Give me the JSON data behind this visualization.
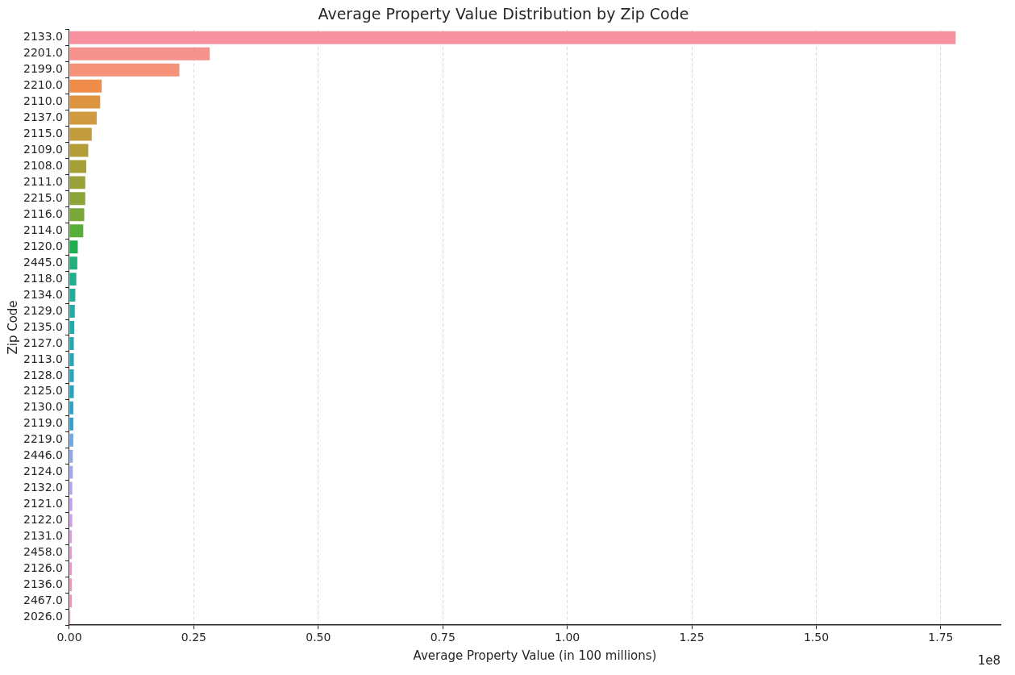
{
  "chart_data": {
    "type": "bar",
    "orientation": "horizontal",
    "title": "Average Property Value Distribution by Zip Code",
    "xlabel": "Average Property Value (in 100 millions)",
    "ylabel": "Zip Code",
    "categories": [
      "2133.0",
      "2201.0",
      "2199.0",
      "2210.0",
      "2110.0",
      "2137.0",
      "2115.0",
      "2109.0",
      "2108.0",
      "2111.0",
      "2215.0",
      "2116.0",
      "2114.0",
      "2120.0",
      "2445.0",
      "2118.0",
      "2134.0",
      "2129.0",
      "2135.0",
      "2127.0",
      "2113.0",
      "2128.0",
      "2125.0",
      "2130.0",
      "2119.0",
      "2219.0",
      "2446.0",
      "2124.0",
      "2132.0",
      "2121.0",
      "2122.0",
      "2131.0",
      "2458.0",
      "2126.0",
      "2136.0",
      "2467.0",
      "2026.0"
    ],
    "values": [
      1.78,
      0.282,
      0.221,
      0.065,
      0.062,
      0.055,
      0.045,
      0.038,
      0.034,
      0.032,
      0.032,
      0.03,
      0.028,
      0.017,
      0.016,
      0.014,
      0.012,
      0.011,
      0.01,
      0.009,
      0.009,
      0.009,
      0.009,
      0.008,
      0.008,
      0.008,
      0.007,
      0.007,
      0.006,
      0.006,
      0.006,
      0.005,
      0.005,
      0.005,
      0.005,
      0.005,
      0.002
    ],
    "colors": [
      "#f8919f",
      "#f6928d",
      "#f5937a",
      "#f08c4a",
      "#dc9440",
      "#d09a40",
      "#c29c3c",
      "#b39d38",
      "#a49f36",
      "#98a238",
      "#8ca43a",
      "#7ba83a",
      "#59ad3a",
      "#1fb04d",
      "#20b07c",
      "#1cb08e",
      "#1eae9c",
      "#1fada6",
      "#20acae",
      "#20aab4",
      "#21a9ba",
      "#22a8c0",
      "#23a6c6",
      "#25a4cc",
      "#2aa2d6",
      "#6aa8e8",
      "#8ea8ee",
      "#a3a6f2",
      "#b5a3f4",
      "#c49ff4",
      "#d59cf0",
      "#e498e6",
      "#ed96d8",
      "#f294c8",
      "#f593bb",
      "#f692ae",
      "#f791a3"
    ],
    "xlim": [
      0,
      1.87
    ],
    "xticks": [
      {
        "value": 0,
        "label": "0.00"
      },
      {
        "value": 0.25,
        "label": "0.25"
      },
      {
        "value": 0.5,
        "label": "0.50"
      },
      {
        "value": 0.75,
        "label": "0.75"
      },
      {
        "value": 1,
        "label": "1.00"
      },
      {
        "value": 1.25,
        "label": "1.25"
      },
      {
        "value": 1.5,
        "label": "1.50"
      },
      {
        "value": 1.75,
        "label": "1.75"
      }
    ],
    "grid": "x",
    "annotations": [
      "1e8"
    ]
  }
}
